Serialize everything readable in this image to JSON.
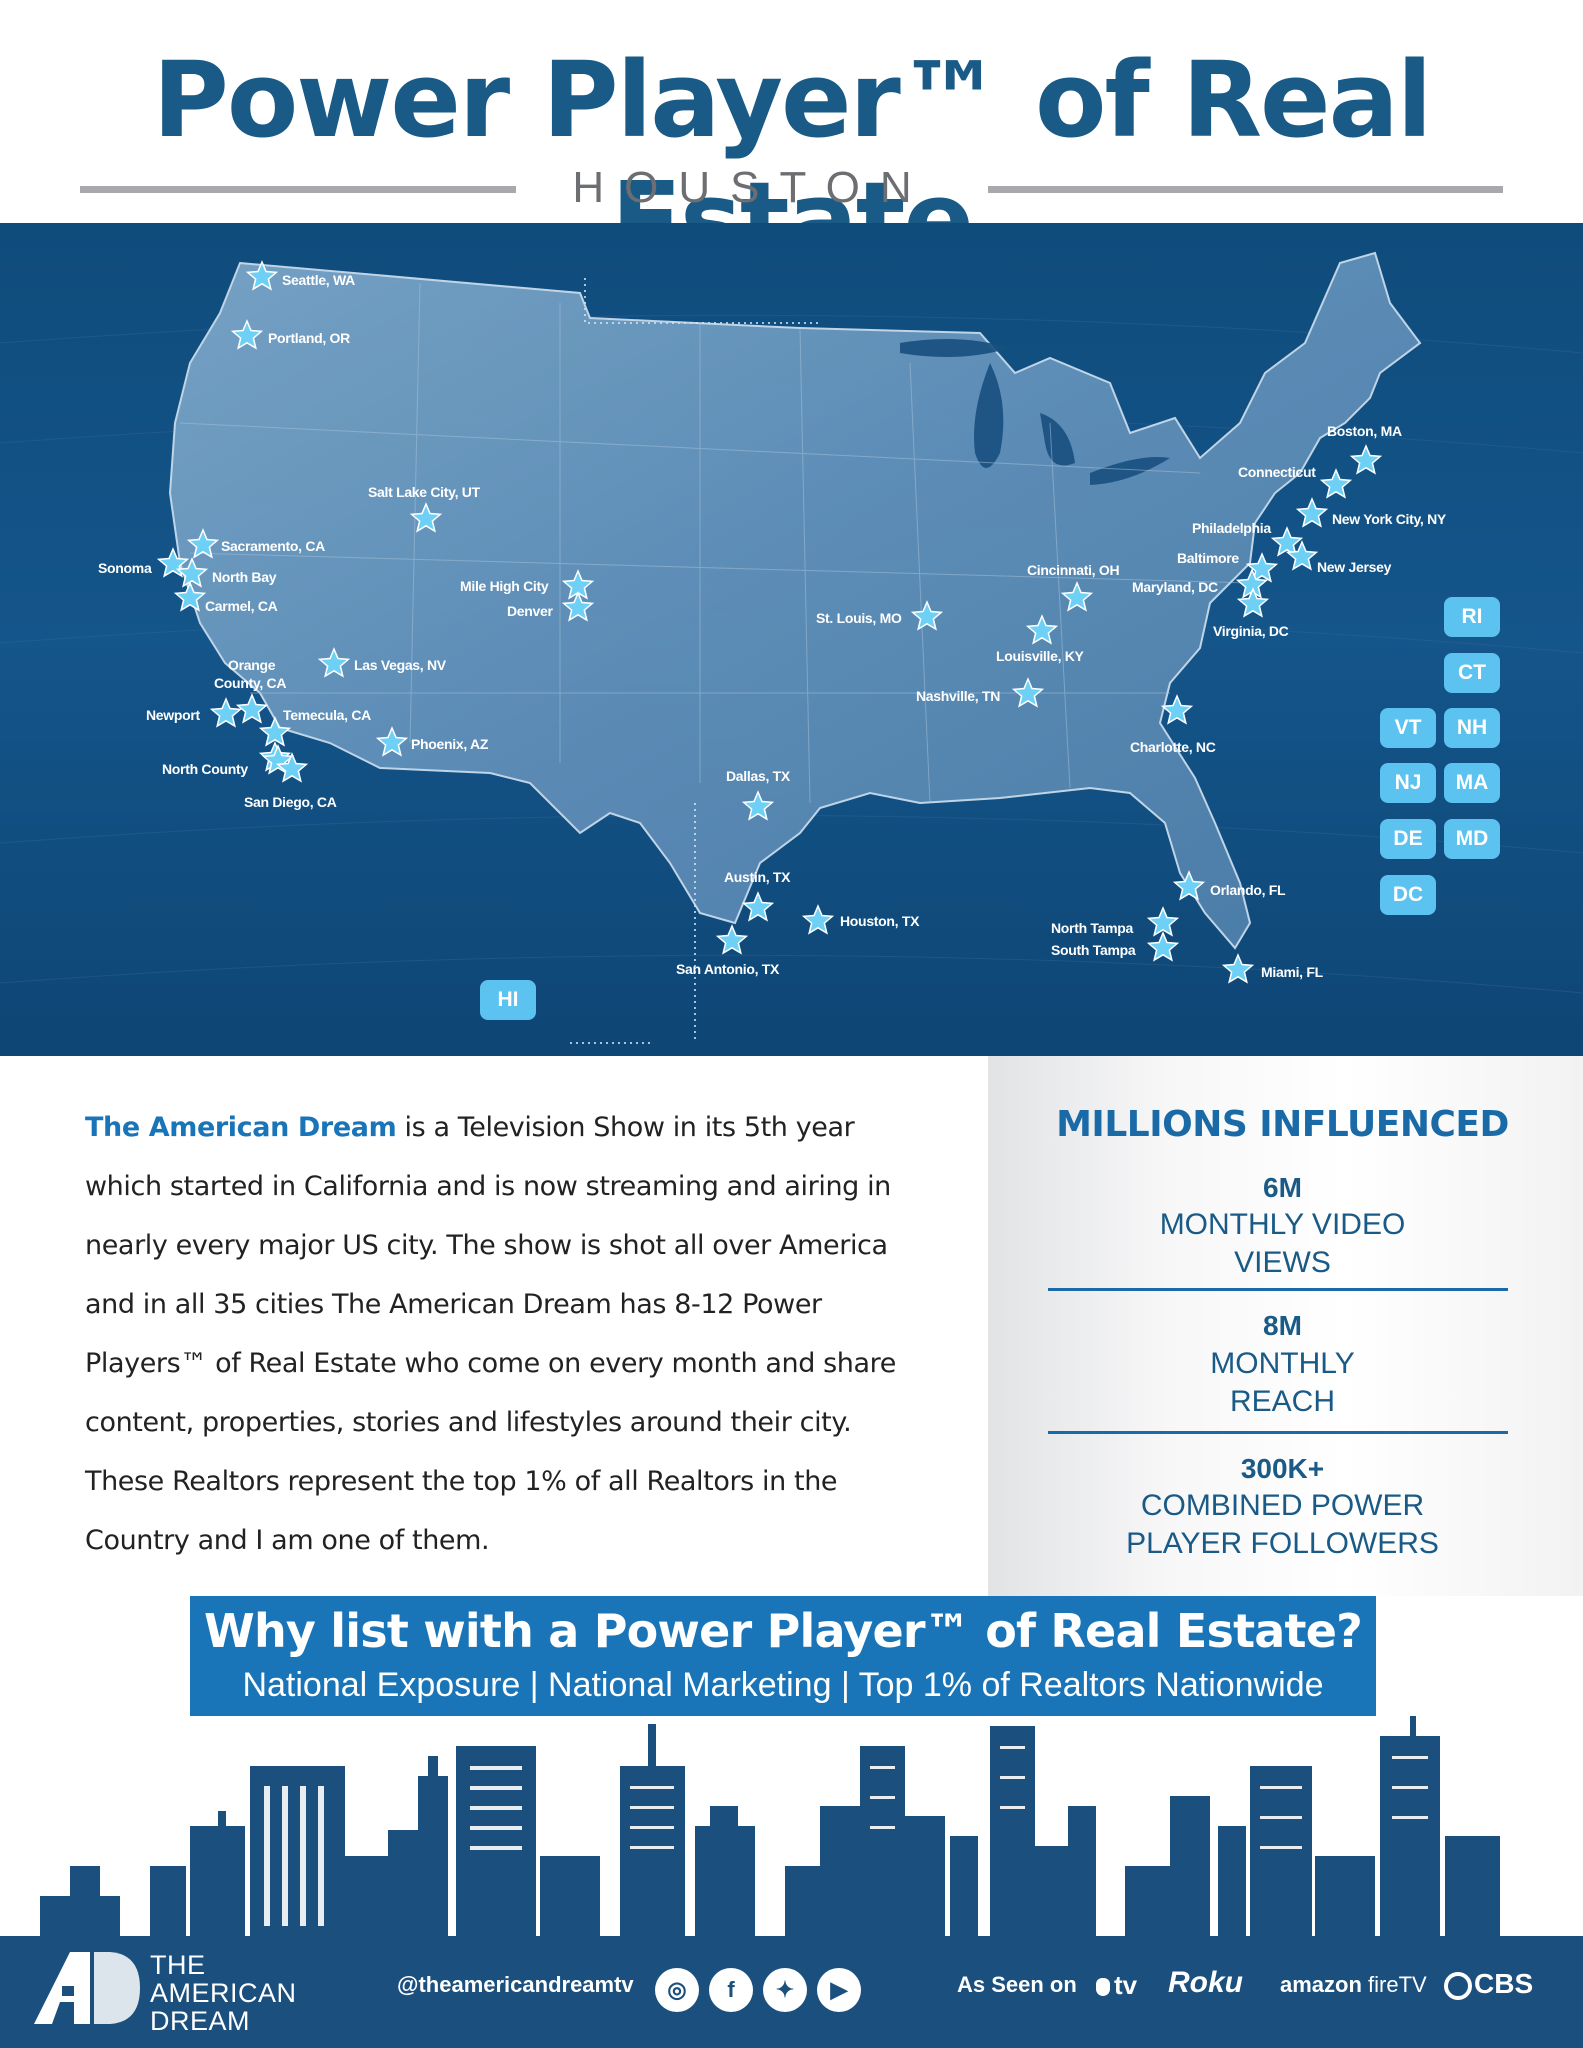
{
  "header": {
    "title": "Power Player™ of Real Estate",
    "subtitle": "HOUSTON"
  },
  "colors": {
    "navy": "#1a5a86",
    "accent": "#1a75b8",
    "star": "#6fd0f6",
    "state_box": "#5cc2f0"
  },
  "map": {
    "state_boxes": [
      "RI",
      "CT",
      "VT",
      "NH",
      "NJ",
      "MA",
      "DE",
      "MD",
      "DC",
      "HI"
    ],
    "cities": [
      "Seattle, WA",
      "Portland, OR",
      "Salt Lake City, UT",
      "Sacramento, CA",
      "Sonoma",
      "North Bay",
      "Carmel, CA",
      "Mile High City",
      "Denver",
      "Las Vegas, NV",
      "Orange",
      "County, CA",
      "Newport",
      "Temecula, CA",
      "Phoenix, AZ",
      "North County",
      "San Diego, CA",
      "Dallas, TX",
      "Austin, TX",
      "Houston, TX",
      "San Antonio, TX",
      "St. Louis, MO",
      "Nashville, TN",
      "Cincinnati, OH",
      "Louisville, KY",
      "Charlotte, NC",
      "Orlando, FL",
      "North Tampa",
      "South Tampa",
      "Miami, FL",
      "Boston, MA",
      "Connecticut",
      "New York City, NY",
      "Philadelphia",
      "Baltimore",
      "New Jersey",
      "Maryland, DC",
      "Virginia, DC"
    ]
  },
  "description": {
    "brand": "The American Dream",
    "lines": [
      " is a Television Show in its 5th year",
      "which started in California and is now streaming and airing in",
      "nearly every major US city. The show is shot all over America",
      "and in all 35 cities The American Dream has 8-12 Power",
      "Players™ of Real Estate who come on every month and share",
      "content, properties, stories and lifestyles around their city.",
      "These Realtors represent the top 1% of all Realtors in the",
      "Country and I am one of them."
    ]
  },
  "stats": {
    "title": "MILLIONS INFLUENCED",
    "items": [
      {
        "value": "6M",
        "line1": "MONTHLY VIDEO",
        "line2": "VIEWS"
      },
      {
        "value": "8M",
        "line1": "MONTHLY",
        "line2": "REACH"
      },
      {
        "value": "300K+",
        "line1": "COMBINED POWER",
        "line2": "PLAYER FOLLOWERS"
      }
    ]
  },
  "banner": {
    "title": "Why list with a Power Player™ of Real Estate?",
    "subtitle": "National Exposure | National Marketing | Top 1% of Realtors Nationwide"
  },
  "footer": {
    "logo_line1": "THE",
    "logo_line2": "AMERICAN",
    "logo_line3": "DREAM",
    "logo_mark": "AD",
    "handle": "@theamericandreamtv",
    "social": [
      {
        "name": "instagram-icon",
        "glyph": "◎"
      },
      {
        "name": "facebook-icon",
        "glyph": "f"
      },
      {
        "name": "twitter-icon",
        "glyph": "✦"
      },
      {
        "name": "youtube-icon",
        "glyph": "▶"
      }
    ],
    "seen_on": "As Seen on",
    "tv_apple": "tv",
    "tv_roku": "Roku",
    "tv_amazon": "amazon",
    "tv_firetv": "fireTV",
    "tv_cbs": "CBS"
  }
}
